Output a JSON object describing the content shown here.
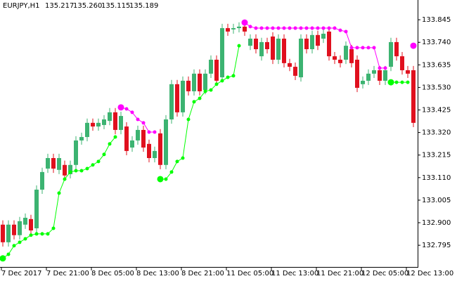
{
  "chart_data": {
    "type": "candlestick",
    "title": "EURJPY,H1",
    "quote": [
      "135.217",
      "135.260",
      "135.115",
      "135.189"
    ],
    "categories": [
      "7 Dec 2017",
      null,
      null,
      null,
      null,
      null,
      null,
      null,
      "7 Dec 21:00",
      null,
      null,
      null,
      null,
      null,
      null,
      null,
      "8 Dec 05:00",
      null,
      null,
      null,
      null,
      null,
      null,
      null,
      "8 Dec 13:00",
      null,
      null,
      null,
      null,
      null,
      null,
      null,
      "8 Dec 21:00",
      null,
      null,
      null,
      null,
      null,
      null,
      null,
      "11 Dec 05:00",
      null,
      null,
      null,
      null,
      null,
      null,
      null,
      "11 Dec 13:00",
      null,
      null,
      null,
      null,
      null,
      null,
      null,
      "11 Dec 21:00",
      null,
      null,
      null,
      null,
      null,
      null,
      null,
      "12 Dec 05:00",
      null,
      null,
      null,
      null,
      null,
      null,
      null,
      "12 Dec 13:00",
      null
    ],
    "open": [
      132.891,
      132.809,
      132.891,
      132.842,
      132.891,
      132.917,
      132.874,
      133.054,
      133.152,
      133.201,
      133.146,
      133.169,
      133.126,
      133.169,
      133.283,
      133.299,
      133.365,
      133.348,
      133.355,
      133.374,
      133.414,
      133.332,
      133.348,
      133.25,
      133.283,
      133.332,
      133.267,
      133.201,
      133.316,
      133.169,
      133.381,
      133.545,
      133.414,
      133.561,
      133.512,
      133.594,
      133.518,
      133.594,
      133.659,
      133.577,
      133.806,
      133.8,
      133.806,
      133.813,
      133.724,
      133.757,
      133.675,
      133.741,
      133.767,
      133.659,
      133.757,
      133.643,
      133.626,
      133.577,
      133.757,
      133.708,
      133.774,
      133.757,
      133.79,
      133.675,
      133.659,
      133.659,
      133.708,
      133.659,
      133.545,
      133.561,
      133.594,
      133.61,
      133.561,
      133.626,
      133.741,
      133.675,
      133.61,
      133.61
    ],
    "high": [
      132.911,
      132.911,
      132.911,
      132.927,
      132.943,
      132.937,
      133.074,
      133.156,
      133.221,
      133.221,
      133.221,
      133.189,
      133.189,
      133.303,
      133.319,
      133.385,
      133.385,
      133.385,
      133.401,
      133.434,
      133.434,
      133.417,
      133.368,
      133.303,
      133.352,
      133.352,
      133.287,
      133.254,
      133.336,
      133.401,
      133.565,
      133.565,
      133.581,
      133.581,
      133.614,
      133.614,
      133.614,
      133.679,
      133.679,
      133.826,
      133.826,
      133.826,
      133.833,
      133.833,
      133.777,
      133.777,
      133.761,
      133.761,
      133.787,
      133.777,
      133.777,
      133.663,
      133.646,
      133.777,
      133.777,
      133.794,
      133.794,
      133.8,
      133.81,
      133.695,
      133.679,
      133.744,
      133.728,
      133.679,
      133.581,
      133.614,
      133.63,
      133.63,
      133.63,
      133.761,
      133.761,
      133.695,
      133.63,
      133.63
    ],
    "low": [
      132.789,
      132.789,
      132.822,
      132.822,
      132.871,
      132.844,
      132.854,
      133.034,
      133.132,
      133.132,
      133.126,
      133.1,
      133.106,
      133.149,
      133.263,
      133.279,
      133.328,
      133.328,
      133.335,
      133.354,
      133.312,
      133.312,
      133.214,
      133.23,
      133.263,
      133.23,
      133.181,
      133.181,
      133.149,
      133.149,
      133.361,
      133.394,
      133.394,
      133.492,
      133.492,
      133.492,
      133.498,
      133.574,
      133.541,
      133.557,
      133.77,
      133.78,
      133.786,
      133.77,
      133.704,
      133.688,
      133.655,
      133.688,
      133.639,
      133.639,
      133.623,
      133.606,
      133.564,
      133.557,
      133.688,
      133.688,
      133.704,
      133.737,
      133.655,
      133.639,
      133.623,
      133.639,
      133.623,
      133.508,
      133.525,
      133.541,
      133.574,
      133.541,
      133.541,
      133.606,
      133.655,
      133.59,
      133.574,
      133.345
    ],
    "close": [
      132.809,
      132.891,
      132.842,
      132.907,
      132.923,
      132.864,
      133.054,
      133.136,
      133.201,
      133.152,
      133.201,
      133.12,
      133.169,
      133.283,
      133.299,
      133.365,
      133.348,
      133.365,
      133.381,
      133.414,
      133.332,
      133.397,
      133.234,
      133.283,
      133.332,
      133.25,
      133.201,
      133.234,
      133.169,
      133.381,
      133.545,
      133.414,
      133.561,
      133.512,
      133.594,
      133.512,
      133.594,
      133.659,
      133.561,
      133.806,
      133.79,
      133.806,
      133.813,
      133.79,
      133.757,
      133.708,
      133.741,
      133.708,
      133.659,
      133.757,
      133.643,
      133.626,
      133.584,
      133.757,
      133.708,
      133.774,
      133.724,
      133.78,
      133.675,
      133.659,
      133.643,
      133.724,
      133.643,
      133.528,
      133.561,
      133.594,
      133.61,
      133.561,
      133.61,
      133.741,
      133.675,
      133.61,
      133.594,
      133.365
    ],
    "up_color": "#3cb371",
    "down_color": "#e0101e",
    "overlays": [
      {
        "color": "#00ff00",
        "values": [
          132.734,
          132.753,
          132.793,
          132.809,
          132.825,
          132.842,
          132.848,
          132.848,
          132.848,
          132.874,
          133.038,
          133.103,
          133.136,
          133.142,
          133.142,
          133.152,
          133.169,
          133.185,
          133.218,
          133.267,
          133.299,
          null,
          null,
          null,
          null,
          null,
          null,
          null,
          133.103,
          133.103,
          133.136,
          133.185,
          133.201,
          133.381,
          133.463,
          133.479,
          133.512,
          133.518,
          133.545,
          133.561,
          133.577,
          133.584,
          133.724,
          null,
          null,
          null,
          null,
          null,
          null,
          null,
          null,
          null,
          null,
          null,
          null,
          null,
          null,
          null,
          null,
          null,
          null,
          null,
          null,
          null,
          null,
          null,
          null,
          null,
          null,
          133.554,
          133.554,
          133.554,
          133.554,
          null
        ]
      },
      {
        "color": "#ff00ff",
        "values": [
          null,
          null,
          null,
          null,
          null,
          null,
          null,
          null,
          null,
          null,
          null,
          null,
          null,
          null,
          null,
          null,
          null,
          null,
          null,
          null,
          null,
          133.437,
          133.43,
          133.414,
          133.381,
          133.365,
          133.322,
          133.322,
          null,
          null,
          null,
          null,
          null,
          null,
          null,
          null,
          null,
          null,
          null,
          null,
          null,
          null,
          null,
          133.832,
          133.813,
          133.806,
          133.806,
          133.806,
          133.806,
          133.806,
          133.806,
          133.806,
          133.806,
          133.806,
          133.806,
          133.806,
          133.806,
          133.806,
          133.806,
          133.806,
          133.796,
          133.79,
          133.715,
          133.715,
          133.715,
          133.715,
          133.715,
          133.62,
          133.62,
          null,
          null,
          null,
          null,
          133.724
        ]
      }
    ],
    "ylim": [
      132.694,
      133.937
    ],
    "yticks": [
      {
        "value": 132.795,
        "label": "132.795"
      },
      {
        "value": 132.9,
        "label": "132.900"
      },
      {
        "value": 133.005,
        "label": "133.005"
      },
      {
        "value": 133.11,
        "label": "133.110"
      },
      {
        "value": 133.215,
        "label": "133.215"
      },
      {
        "value": 133.32,
        "label": "133.320"
      },
      {
        "value": 133.425,
        "label": "133.425"
      },
      {
        "value": 133.53,
        "label": "133.530"
      },
      {
        "value": 133.635,
        "label": "133.635"
      },
      {
        "value": 133.74,
        "label": "133.740"
      },
      {
        "value": 133.845,
        "label": "133.845"
      }
    ]
  }
}
